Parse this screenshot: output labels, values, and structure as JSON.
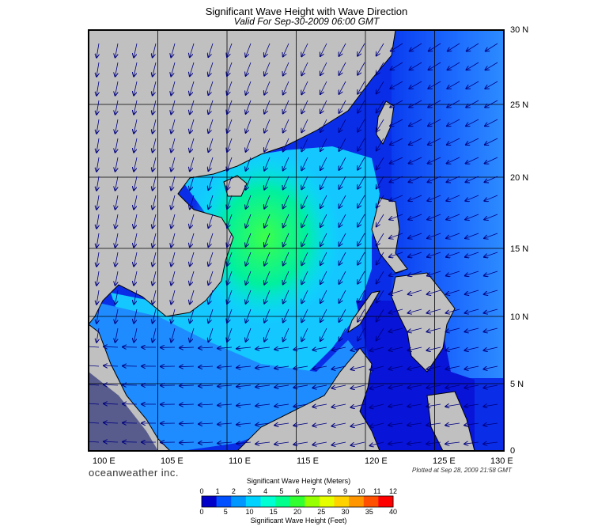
{
  "header": {
    "title": "Significant Wave Height with Wave Direction",
    "subtitle": "Valid For Sep-30-2009 06:00 GMT"
  },
  "map": {
    "lat_labels": [
      "30 N",
      "25 N",
      "20 N",
      "15 N",
      "10 N",
      "5 N",
      "0"
    ],
    "lon_labels": [
      "100 E",
      "105 E",
      "110 E",
      "115 E",
      "120 E",
      "125 E",
      "130 E"
    ],
    "land_color": "#c0c0c0",
    "ocean_colors": {
      "deep_low": "#0000e6",
      "low": "#1e5aff",
      "mid": "#00c8ff",
      "high": "#00e6a0",
      "peak": "#32ff50"
    },
    "arrow_color": "#000080"
  },
  "footer": {
    "brand": "oceanweather inc.",
    "plotted": "Plotted at Sep 28, 2009 21:58 GMT"
  },
  "colorbar": {
    "title_meters": "Significant Wave Height (Meters)",
    "title_feet": "Significant Wave Height (Feet)",
    "meters_ticks": [
      "0",
      "1",
      "2",
      "3",
      "4",
      "5",
      "6",
      "7",
      "8",
      "9",
      "10",
      "11",
      "12"
    ],
    "feet_ticks": [
      "0",
      "5",
      "10",
      "15",
      "20",
      "25",
      "30",
      "35",
      "40"
    ],
    "colors": [
      "#0000c8",
      "#0050ff",
      "#0096ff",
      "#00d2ff",
      "#00ffd2",
      "#00ff8c",
      "#32ff32",
      "#96ff00",
      "#e6ff00",
      "#ffd200",
      "#ff9600",
      "#ff5000",
      "#ff0000"
    ]
  }
}
